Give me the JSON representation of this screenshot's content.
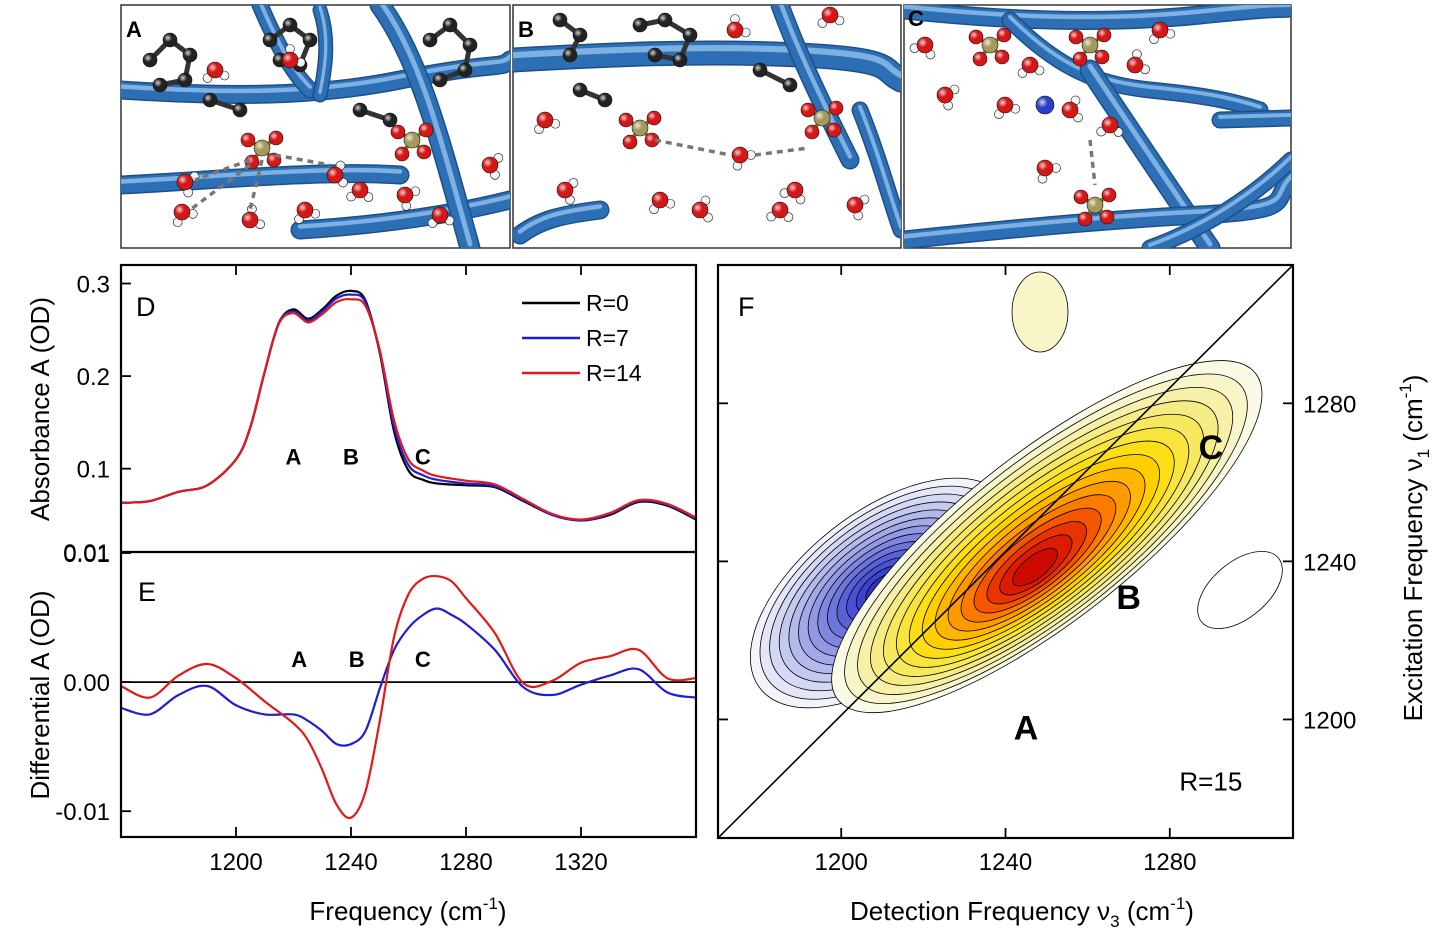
{
  "colors": {
    "r0": "#000000",
    "r7": "#1f1fd0",
    "r14": "#e0191a",
    "water_o": "#d41717",
    "water_h": "#f2f2f2",
    "carbon": "#222222",
    "phosphorus": "#a59a5c",
    "sodium": "#2a3fc6",
    "backbone": "#2c6fb5"
  },
  "panels_top": [
    {
      "label": "A"
    },
    {
      "label": "B"
    },
    {
      "label": "C"
    }
  ],
  "chart_data": [
    {
      "panel": "D",
      "type": "line",
      "ylabel": "Absorbance A (OD)",
      "xlim": [
        1160,
        1360
      ],
      "ylim": [
        0.01,
        0.32
      ],
      "yticks": [
        "0.01",
        "0.1",
        "0.2",
        "0.3"
      ],
      "ytick_values": [
        0.01,
        0.1,
        0.2,
        0.3
      ],
      "x": [
        1160,
        1170,
        1180,
        1190,
        1200,
        1205,
        1210,
        1215,
        1220,
        1225,
        1230,
        1235,
        1240,
        1245,
        1250,
        1255,
        1260,
        1265,
        1270,
        1280,
        1290,
        1300,
        1310,
        1320,
        1330,
        1340,
        1350,
        1360
      ],
      "series": [
        {
          "name": "R=0",
          "values": [
            0.063,
            0.065,
            0.075,
            0.082,
            0.11,
            0.145,
            0.205,
            0.258,
            0.272,
            0.262,
            0.272,
            0.287,
            0.292,
            0.282,
            0.225,
            0.14,
            0.098,
            0.088,
            0.084,
            0.082,
            0.08,
            0.065,
            0.05,
            0.044,
            0.05,
            0.064,
            0.06,
            0.045
          ]
        },
        {
          "name": "R=7",
          "values": [
            0.063,
            0.065,
            0.075,
            0.082,
            0.11,
            0.145,
            0.205,
            0.258,
            0.27,
            0.26,
            0.27,
            0.284,
            0.288,
            0.28,
            0.226,
            0.145,
            0.104,
            0.093,
            0.088,
            0.084,
            0.081,
            0.066,
            0.05,
            0.044,
            0.051,
            0.065,
            0.061,
            0.046
          ]
        },
        {
          "name": "R=14",
          "values": [
            0.063,
            0.065,
            0.075,
            0.082,
            0.11,
            0.145,
            0.205,
            0.257,
            0.268,
            0.258,
            0.267,
            0.28,
            0.283,
            0.276,
            0.228,
            0.152,
            0.11,
            0.098,
            0.092,
            0.087,
            0.083,
            0.067,
            0.051,
            0.045,
            0.052,
            0.066,
            0.062,
            0.047
          ]
        }
      ],
      "annotations": [
        {
          "text": "A",
          "x": 1220,
          "y": 0.113
        },
        {
          "text": "B",
          "x": 1240,
          "y": 0.113
        },
        {
          "text": "C",
          "x": 1265,
          "y": 0.113
        }
      ],
      "legend": "top-right"
    },
    {
      "panel": "E",
      "type": "line",
      "ylabel": "Differential A (OD)",
      "xlim": [
        1160,
        1360
      ],
      "ylim": [
        -0.012,
        0.01
      ],
      "yticks": [
        "0.01",
        "0.00",
        "-0.01"
      ],
      "ytick_values": [
        0.01,
        0.0,
        -0.01
      ],
      "xticks": [
        "1200",
        "1240",
        "1280",
        "1320"
      ],
      "xtick_values": [
        1200,
        1240,
        1280,
        1320
      ],
      "xlabel": "Frequency (cm-1)",
      "x": [
        1160,
        1170,
        1180,
        1190,
        1200,
        1210,
        1220,
        1225,
        1230,
        1235,
        1240,
        1245,
        1250,
        1255,
        1260,
        1265,
        1270,
        1275,
        1280,
        1290,
        1300,
        1310,
        1320,
        1330,
        1340,
        1350,
        1360
      ],
      "series": [
        {
          "name": "R=7",
          "values": [
            -0.002,
            -0.0025,
            -0.001,
            -0.0003,
            -0.0018,
            -0.0025,
            -0.0025,
            -0.003,
            -0.0038,
            -0.0048,
            -0.0048,
            -0.0038,
            -0.0005,
            0.0025,
            0.0042,
            0.0052,
            0.0057,
            0.0052,
            0.0045,
            0.0025,
            -0.0004,
            -0.001,
            -0.0002,
            0.0005,
            0.001,
            -0.0008,
            -0.0012
          ]
        },
        {
          "name": "R=14",
          "values": [
            -0.0003,
            -0.0012,
            0.0005,
            0.0014,
            0.0003,
            -0.0015,
            -0.0032,
            -0.0045,
            -0.0068,
            -0.0095,
            -0.0105,
            -0.0085,
            -0.003,
            0.0035,
            0.0068,
            0.008,
            0.0082,
            0.0078,
            0.0065,
            0.0038,
            -0.0001,
            0.0001,
            0.0015,
            0.002,
            0.0025,
            0.0003,
            0.0003
          ]
        }
      ],
      "annotations": [
        {
          "text": "A",
          "x": 1222,
          "y": 0.0018
        },
        {
          "text": "B",
          "x": 1242,
          "y": 0.0018
        },
        {
          "text": "C",
          "x": 1265,
          "y": 0.0018
        }
      ]
    },
    {
      "panel": "F",
      "type": "heatmap",
      "xlabel": "Detection Frequency ν3 (cm-1)",
      "ylabel": "Excitation Frequency ν1 (cm-1)",
      "xlim": [
        1170,
        1310
      ],
      "ylim": [
        1170,
        1315
      ],
      "xticks": [
        "1200",
        "1240",
        "1280"
      ],
      "xtick_values": [
        1200,
        1240,
        1280
      ],
      "yticks": [
        "1200",
        "1240",
        "1280"
      ],
      "ytick_values": [
        1200,
        1240,
        1280
      ],
      "negative_peak": {
        "x": 1210,
        "y": 1232,
        "sign": "negative"
      },
      "positive_peak": {
        "x": 1247,
        "y": 1238,
        "sign": "positive"
      },
      "diagonal": true,
      "annotations": [
        {
          "text": "A",
          "x": 1245,
          "y": 1198
        },
        {
          "text": "B",
          "x": 1270,
          "y": 1231
        },
        {
          "text": "C",
          "x": 1290,
          "y": 1269
        },
        {
          "text": "R=15",
          "x": 1290,
          "y": 1185
        }
      ]
    }
  ],
  "labels": {
    "D": "D",
    "E": "E",
    "F": "F",
    "freq_text": "Frequency (cm",
    "freq_sup": "-1",
    "freq_close": ")",
    "det_text": "Detection Frequency ν",
    "det_sub": "3",
    "det_cm": " (cm",
    "det_sup": "-1",
    "det_close": ")",
    "exc_text": "Excitation Frequency ν",
    "exc_sub": "1",
    "exc_cm": " (cm",
    "exc_sup": "-1",
    "exc_close": ")"
  }
}
